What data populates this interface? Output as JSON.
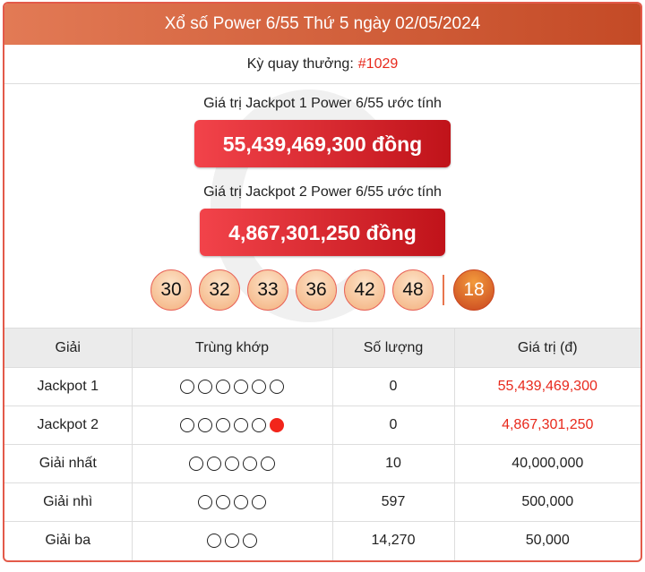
{
  "header": {
    "title": "Xổ số Power 6/55 Thứ 5 ngày 02/05/2024"
  },
  "draw": {
    "label": "Kỳ quay thưởng:",
    "number": "#1029"
  },
  "jackpot1": {
    "label": "Giá trị Jackpot 1 Power 6/55 ước tính",
    "amount": "55,439,469,300 đồng"
  },
  "jackpot2": {
    "label": "Giá trị Jackpot 2 Power 6/55 ước tính",
    "amount": "4,867,301,250 đồng"
  },
  "numbers": [
    "30",
    "32",
    "33",
    "36",
    "42",
    "48"
  ],
  "power_number": "18",
  "colors": {
    "accent": "#e8291c",
    "header": "#d2603a"
  },
  "table": {
    "headers": [
      "Giải",
      "Trùng khớp",
      "Số lượng",
      "Giá trị (đ)"
    ],
    "rows": [
      {
        "prize": "Jackpot 1",
        "match": 6,
        "power": false,
        "count": "0",
        "value": "55,439,469,300",
        "highlight": true
      },
      {
        "prize": "Jackpot 2",
        "match": 5,
        "power": true,
        "count": "0",
        "value": "4,867,301,250",
        "highlight": true
      },
      {
        "prize": "Giải nhất",
        "match": 5,
        "power": false,
        "count": "10",
        "value": "40,000,000",
        "highlight": false
      },
      {
        "prize": "Giải nhì",
        "match": 4,
        "power": false,
        "count": "597",
        "value": "500,000",
        "highlight": false
      },
      {
        "prize": "Giải ba",
        "match": 3,
        "power": false,
        "count": "14,270",
        "value": "50,000",
        "highlight": false
      }
    ]
  }
}
